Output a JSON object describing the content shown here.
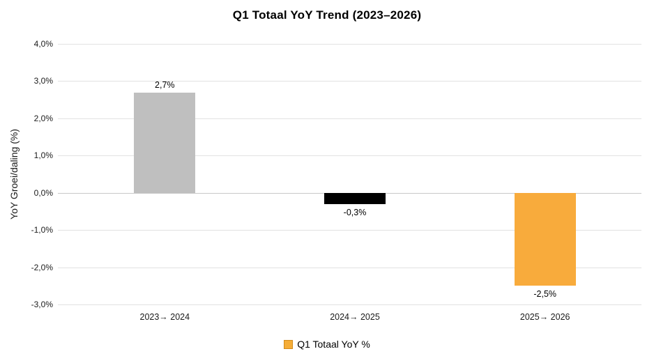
{
  "chart_data": {
    "type": "bar",
    "title": "Q1 Totaal YoY Trend (2023–2026)",
    "ylabel": "YoY Groei/daling (%)",
    "xlabel": "",
    "categories": [
      "2023→ 2024",
      "2024→ 2025",
      "2025→ 2026"
    ],
    "values": [
      2.7,
      -0.3,
      -2.5
    ],
    "value_labels": [
      "2,7%",
      "-0,3%",
      "-2,5%"
    ],
    "bar_colors": [
      "#bfbfbf",
      "#000000",
      "#f8ab3c"
    ],
    "ylim": [
      -3,
      4
    ],
    "yticks": [
      {
        "value": 4,
        "label": "4,0%"
      },
      {
        "value": 3,
        "label": "3,0%"
      },
      {
        "value": 2,
        "label": "2,0%"
      },
      {
        "value": 1,
        "label": "1,0%"
      },
      {
        "value": 0,
        "label": "0,0%"
      },
      {
        "value": -1,
        "label": "-1,0%"
      },
      {
        "value": -2,
        "label": "-2,0%"
      },
      {
        "value": -3,
        "label": "-3,0%"
      }
    ],
    "grid": true,
    "zero_line_color": "#c8c8c8",
    "gridline_color": "#e2e2e2",
    "legend": {
      "position": "bottom",
      "label": "Q1 Totaal YoY %",
      "marker_color": "#f5ad38"
    }
  }
}
